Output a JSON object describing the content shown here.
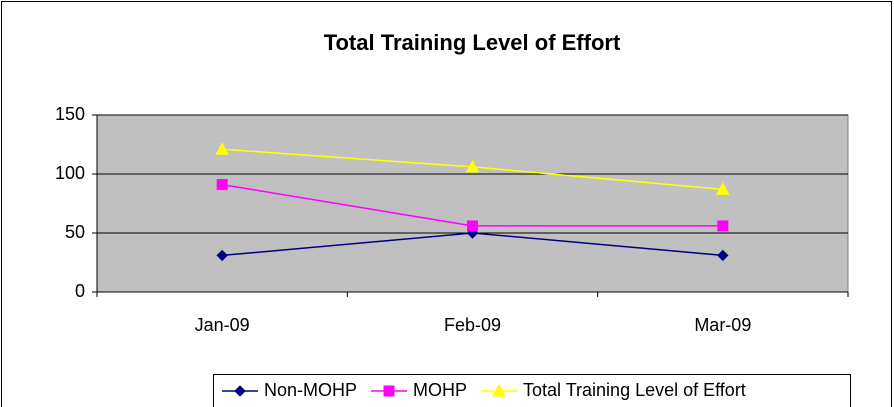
{
  "chart_data": {
    "type": "line",
    "title": "Total Training Level of Effort",
    "categories": [
      "Jan-09",
      "Feb-09",
      "Mar-09"
    ],
    "series": [
      {
        "name": "Non-MOHP",
        "color": "#000080",
        "values": [
          31,
          50,
          31
        ]
      },
      {
        "name": "MOHP",
        "color": "#ff00ff",
        "values": [
          91,
          56,
          56
        ]
      },
      {
        "name": "Total Training Level of Effort",
        "color": "#ffff00",
        "values": [
          121,
          106,
          87
        ]
      }
    ],
    "ylim": [
      0,
      150
    ],
    "yticks": [
      0,
      50,
      100,
      150
    ],
    "grid": true,
    "legend": "bottom"
  }
}
